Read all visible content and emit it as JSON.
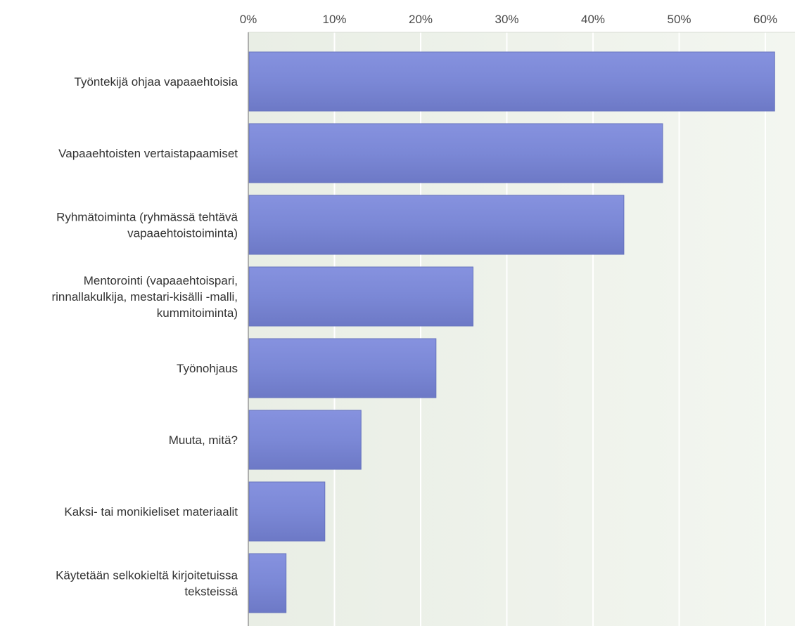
{
  "chart_data": {
    "type": "bar",
    "orientation": "horizontal",
    "title": "",
    "xlabel": "",
    "ylabel": "",
    "xlim": [
      0,
      62
    ],
    "ticks": [
      {
        "value": 0,
        "label": "0%"
      },
      {
        "value": 10,
        "label": "10%"
      },
      {
        "value": 20,
        "label": "20%"
      },
      {
        "value": 30,
        "label": "30%"
      },
      {
        "value": 40,
        "label": "40%"
      },
      {
        "value": 50,
        "label": "50%"
      },
      {
        "value": 60,
        "label": "60%"
      }
    ],
    "grid": true,
    "tick_position": "top",
    "categories": [
      {
        "lines": [
          "Työntekijä ohjaa vapaaehtoisia"
        ]
      },
      {
        "lines": [
          "Vapaaehtoisten vertaistapaamiset"
        ]
      },
      {
        "lines": [
          "Ryhmätoiminta (ryhmässä tehtävä",
          "vapaaehtoistoiminta)"
        ]
      },
      {
        "lines": [
          "Mentorointi (vapaaehtoispari,",
          "rinnallakulkija, mestari-kisälli -malli,",
          "kummitoiminta)"
        ]
      },
      {
        "lines": [
          "Työnohjaus"
        ]
      },
      {
        "lines": [
          "Muuta, mitä?"
        ]
      },
      {
        "lines": [
          "Kaksi- tai monikieliset materiaalit"
        ]
      },
      {
        "lines": [
          "Käytetään selkokieltä kirjoitetuissa",
          "teksteissä"
        ]
      }
    ],
    "values": [
      61,
      48,
      43.5,
      26,
      21.7,
      13,
      8.8,
      4.3
    ],
    "unit": "%",
    "colors": {
      "bar": "#7b88d6",
      "bar_dark": "#6f7cc9",
      "plot_bg": "#eef2ea",
      "grid": "#ffffff",
      "axis": "#999999"
    }
  }
}
